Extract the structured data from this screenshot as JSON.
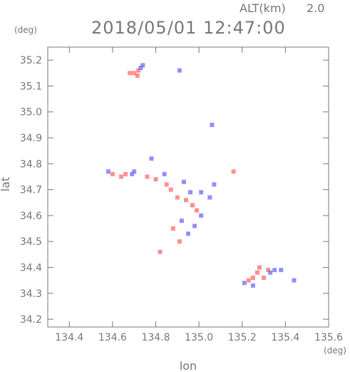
{
  "header": {
    "alt_label": "ALT(km)",
    "alt_value": "2.0",
    "datetime": "2018/05/01 12:47:00"
  },
  "units": {
    "y_unit": "(deg)",
    "x_unit": "(deg)"
  },
  "chart_data": {
    "type": "scatter",
    "xlabel": "lon",
    "ylabel": "lat",
    "xlim": [
      134.3,
      135.6
    ],
    "ylim": [
      34.17,
      35.25
    ],
    "xticks": [
      134.4,
      134.6,
      134.8,
      135.0,
      135.2,
      135.4,
      135.6
    ],
    "yticks": [
      34.2,
      34.3,
      34.4,
      34.5,
      34.6,
      34.7,
      34.8,
      34.9,
      35.0,
      35.1,
      35.2
    ],
    "xtick_labels": [
      "134.4",
      "134.6",
      "134.8",
      "135.0",
      "135.2",
      "135.4",
      "135.6"
    ],
    "ytick_labels": [
      "34.2",
      "34.3",
      "34.4",
      "34.5",
      "34.6",
      "34.7",
      "34.8",
      "34.9",
      "35.0",
      "35.1",
      "35.2"
    ],
    "colors": {
      "positive": "#ff6b6b",
      "negative": "#6b6bff",
      "axis": "#777777"
    },
    "series": [
      {
        "points": [
          [
            134.7,
            35.15
          ],
          [
            134.715,
            35.14
          ],
          [
            134.72,
            35.16
          ],
          [
            134.68,
            35.15
          ],
          [
            134.6,
            34.76
          ],
          [
            134.64,
            34.75
          ],
          [
            134.66,
            34.76
          ],
          [
            134.76,
            34.75
          ],
          [
            134.8,
            34.74
          ],
          [
            134.85,
            34.72
          ],
          [
            134.87,
            34.7
          ],
          [
            134.9,
            34.67
          ],
          [
            134.94,
            34.66
          ],
          [
            134.97,
            34.64
          ],
          [
            134.99,
            34.62
          ],
          [
            134.88,
            34.55
          ],
          [
            134.91,
            34.5
          ],
          [
            135.25,
            34.36
          ],
          [
            135.27,
            34.38
          ],
          [
            135.28,
            34.4
          ],
          [
            135.3,
            34.36
          ],
          [
            135.32,
            34.39
          ],
          [
            135.23,
            34.35
          ],
          [
            134.82,
            34.46
          ],
          [
            135.16,
            34.77
          ]
        ]
      },
      {
        "points": [
          [
            134.73,
            35.17
          ],
          [
            134.74,
            35.18
          ],
          [
            134.91,
            35.16
          ],
          [
            134.58,
            34.77
          ],
          [
            134.69,
            34.76
          ],
          [
            134.7,
            34.77
          ],
          [
            134.78,
            34.82
          ],
          [
            134.84,
            34.76
          ],
          [
            134.93,
            34.73
          ],
          [
            134.96,
            34.69
          ],
          [
            135.05,
            34.67
          ],
          [
            135.07,
            34.72
          ],
          [
            135.01,
            34.69
          ],
          [
            134.92,
            34.58
          ],
          [
            134.95,
            34.53
          ],
          [
            135.01,
            34.6
          ],
          [
            134.98,
            34.56
          ],
          [
            135.06,
            34.95
          ],
          [
            135.33,
            34.38
          ],
          [
            135.35,
            34.39
          ],
          [
            135.38,
            34.39
          ],
          [
            135.44,
            34.35
          ],
          [
            135.21,
            34.34
          ],
          [
            135.25,
            34.33
          ]
        ]
      }
    ]
  }
}
